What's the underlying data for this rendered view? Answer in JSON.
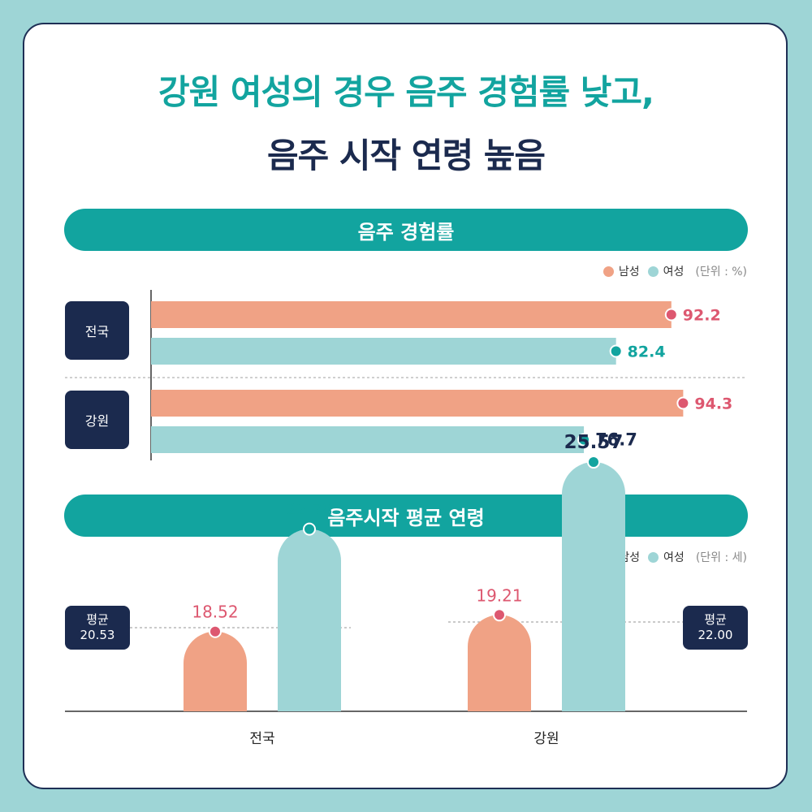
{
  "titles": {
    "line1": "강원 여성의 경우 음주 경험률 낮고,",
    "line2": "음주 시작 연령 높음"
  },
  "legend": {
    "male": "남성",
    "female": "여성"
  },
  "colors": {
    "male_bar": "#f0a285",
    "male_dot": "#dd5870",
    "female_bar": "#9ed5d6",
    "female_dot": "#12a49f",
    "navy": "#1b2a4e",
    "teal": "#12a49f"
  },
  "chart_data": [
    {
      "type": "bar",
      "orientation": "horizontal",
      "title": "음주 경험률",
      "unit_label": "(단위 : %)",
      "categories": [
        "전국",
        "강원"
      ],
      "series": [
        {
          "name": "남성",
          "values": [
            92.2,
            94.3
          ]
        },
        {
          "name": "여성",
          "values": [
            82.4,
            76.7
          ]
        }
      ],
      "highlight": {
        "category": "강원",
        "series": "여성"
      }
    },
    {
      "type": "bar",
      "orientation": "vertical",
      "title": "음주시작 평균 연령",
      "unit_label": "(단위 : 세)",
      "categories": [
        "전국",
        "강원"
      ],
      "series": [
        {
          "name": "남성",
          "values": [
            18.52,
            19.21
          ]
        },
        {
          "name": "여성",
          "values": [
            22.78,
            25.57
          ]
        }
      ],
      "averages": [
        {
          "label": "평균",
          "value": "20.53"
        },
        {
          "label": "평균",
          "value": "22.00"
        }
      ],
      "highlight": {
        "category": "강원",
        "series": "여성"
      }
    }
  ]
}
